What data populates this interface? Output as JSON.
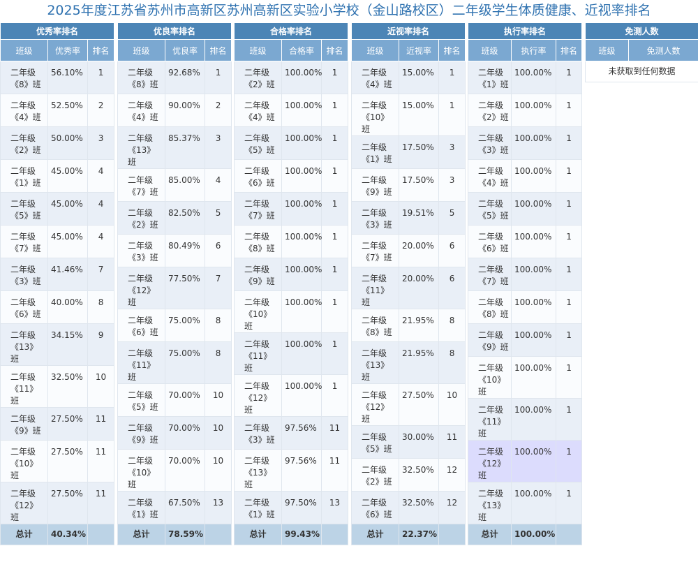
{
  "title": "2025年度江苏省苏州市高新区苏州高新区实验小学校（金山路校区）二年级学生体质健康、近视率排名",
  "tables": [
    {
      "title": "优秀率排名",
      "headers": [
        "班级",
        "优秀率",
        "排名"
      ],
      "rows": [
        [
          "二年级《8》班",
          "56.10%",
          1
        ],
        [
          "二年级《4》班",
          "52.50%",
          2
        ],
        [
          "二年级《2》班",
          "50.00%",
          3
        ],
        [
          "二年级《1》班",
          "45.00%",
          4
        ],
        [
          "二年级《5》班",
          "45.00%",
          4
        ],
        [
          "二年级《7》班",
          "45.00%",
          4
        ],
        [
          "二年级《3》班",
          "41.46%",
          7
        ],
        [
          "二年级《6》班",
          "40.00%",
          8
        ],
        [
          "二年级《13》班",
          "34.15%",
          9
        ],
        [
          "二年级《11》班",
          "32.50%",
          10
        ],
        [
          "二年级《9》班",
          "27.50%",
          11
        ],
        [
          "二年级《10》班",
          "27.50%",
          11
        ],
        [
          "二年级《12》班",
          "27.50%",
          11
        ]
      ],
      "total": [
        "总计",
        "40.34%"
      ]
    },
    {
      "title": "优良率排名",
      "headers": [
        "班级",
        "优良率",
        "排名"
      ],
      "rows": [
        [
          "二年级《8》班",
          "92.68%",
          1
        ],
        [
          "二年级《4》班",
          "90.00%",
          2
        ],
        [
          "二年级《13》班",
          "85.37%",
          3
        ],
        [
          "二年级《7》班",
          "85.00%",
          4
        ],
        [
          "二年级《2》班",
          "82.50%",
          5
        ],
        [
          "二年级《3》班",
          "80.49%",
          6
        ],
        [
          "二年级《12》班",
          "77.50%",
          7
        ],
        [
          "二年级《6》班",
          "75.00%",
          8
        ],
        [
          "二年级《11》班",
          "75.00%",
          8
        ],
        [
          "二年级《5》班",
          "70.00%",
          10
        ],
        [
          "二年级《9》班",
          "70.00%",
          10
        ],
        [
          "二年级《10》班",
          "70.00%",
          10
        ],
        [
          "二年级《1》班",
          "67.50%",
          13
        ]
      ],
      "total": [
        "总计",
        "78.59%"
      ]
    },
    {
      "title": "合格率排名",
      "headers": [
        "班级",
        "合格率",
        "排名"
      ],
      "rows": [
        [
          "二年级《2》班",
          "100.00%",
          1
        ],
        [
          "二年级《4》班",
          "100.00%",
          1
        ],
        [
          "二年级《5》班",
          "100.00%",
          1
        ],
        [
          "二年级《6》班",
          "100.00%",
          1
        ],
        [
          "二年级《7》班",
          "100.00%",
          1
        ],
        [
          "二年级《8》班",
          "100.00%",
          1
        ],
        [
          "二年级《9》班",
          "100.00%",
          1
        ],
        [
          "二年级《10》班",
          "100.00%",
          1
        ],
        [
          "二年级《11》班",
          "100.00%",
          1
        ],
        [
          "二年级《12》班",
          "100.00%",
          1
        ],
        [
          "二年级《3》班",
          "97.56%",
          11
        ],
        [
          "二年级《13》班",
          "97.56%",
          11
        ],
        [
          "二年级《1》班",
          "97.50%",
          13
        ]
      ],
      "total": [
        "总计",
        "99.43%"
      ]
    },
    {
      "title": "近视率排名",
      "headers": [
        "班级",
        "近视率",
        "排名"
      ],
      "rows": [
        [
          "二年级《4》班",
          "15.00%",
          1
        ],
        [
          "二年级《10》班",
          "15.00%",
          1
        ],
        [
          "二年级《1》班",
          "17.50%",
          3
        ],
        [
          "二年级《9》班",
          "17.50%",
          3
        ],
        [
          "二年级《3》班",
          "19.51%",
          5
        ],
        [
          "二年级《7》班",
          "20.00%",
          6
        ],
        [
          "二年级《11》班",
          "20.00%",
          6
        ],
        [
          "二年级《8》班",
          "21.95%",
          8
        ],
        [
          "二年级《13》班",
          "21.95%",
          8
        ],
        [
          "二年级《12》班",
          "27.50%",
          10
        ],
        [
          "二年级《5》班",
          "30.00%",
          11
        ],
        [
          "二年级《2》班",
          "32.50%",
          12
        ],
        [
          "二年级《6》班",
          "32.50%",
          12
        ]
      ],
      "total": [
        "总计",
        "22.37%"
      ]
    },
    {
      "title": "执行率排名",
      "headers": [
        "班级",
        "执行率",
        "排名"
      ],
      "rows": [
        [
          "二年级《1》班",
          "100.00%",
          1
        ],
        [
          "二年级《2》班",
          "100.00%",
          1
        ],
        [
          "二年级《3》班",
          "100.00%",
          1
        ],
        [
          "二年级《4》班",
          "100.00%",
          1
        ],
        [
          "二年级《5》班",
          "100.00%",
          1
        ],
        [
          "二年级《6》班",
          "100.00%",
          1
        ],
        [
          "二年级《7》班",
          "100.00%",
          1
        ],
        [
          "二年级《8》班",
          "100.00%",
          1
        ],
        [
          "二年级《9》班",
          "100.00%",
          1
        ],
        [
          "二年级《10》班",
          "100.00%",
          1
        ],
        [
          "二年级《11》班",
          "100.00%",
          1
        ],
        [
          "二年级《12》班",
          "100.00%",
          1
        ],
        [
          "二年级《13》班",
          "100.00%",
          1
        ]
      ],
      "total": [
        "总计",
        "100.00%"
      ]
    },
    {
      "title": "免测人数",
      "headers": [
        "班级",
        "免测人数"
      ],
      "empty": "未获取到任何数据"
    }
  ]
}
